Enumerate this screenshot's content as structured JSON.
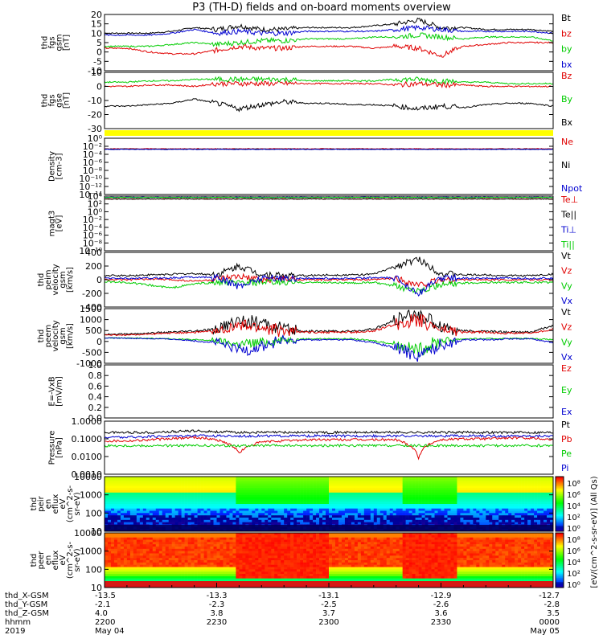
{
  "title": "P3 (TH-D) fields and on-board moments overview",
  "bands": [
    "thd_X-GSM",
    "thd_Y-GSM",
    "thd_Z-GSM",
    "hhmm",
    "2019"
  ],
  "colors": {
    "black": "#000000",
    "red": "#e00000",
    "green": "#00cc00",
    "blue": "#0000d0",
    "yellow": "#ffff00"
  },
  "chart_data": [
    {
      "type": "line",
      "id": "fgs_gsm",
      "ylabel": [
        "thd",
        "fgs",
        "gsm",
        "[nT]"
      ],
      "ylim": [
        -10,
        20
      ],
      "yticks": [
        "20",
        "15",
        "10",
        "5",
        "0",
        "-5",
        "-10"
      ],
      "series": [
        {
          "name": "Bt",
          "color": "#000000",
          "values": [
            10,
            10,
            10,
            11,
            13,
            12,
            14,
            12,
            12,
            13,
            13,
            13,
            14,
            15,
            17,
            13,
            13,
            12,
            12,
            12,
            11
          ]
        },
        {
          "name": "bz",
          "color": "#e00000",
          "values": [
            2,
            2,
            0,
            -1,
            -1,
            1,
            3,
            2,
            2,
            3,
            3,
            3,
            2,
            3,
            2,
            -2,
            3,
            4,
            5,
            5,
            5
          ]
        },
        {
          "name": "by",
          "color": "#00cc00",
          "values": [
            3,
            3,
            3,
            4,
            5,
            4,
            5,
            6,
            6,
            7,
            7,
            7,
            8,
            8,
            9,
            8,
            7,
            8,
            8,
            8,
            6
          ]
        },
        {
          "name": "bx",
          "color": "#0000d0",
          "values": [
            9,
            9,
            9,
            10,
            12,
            10,
            11,
            10,
            10,
            11,
            11,
            11,
            11,
            12,
            13,
            12,
            11,
            11,
            11,
            11,
            10
          ]
        }
      ]
    },
    {
      "type": "line",
      "id": "fgs_gse",
      "ylabel": [
        "thd",
        "fgs",
        "gse",
        "[nT]"
      ],
      "ylim": [
        -30,
        10
      ],
      "yticks": [
        "10",
        "0",
        "-10",
        "-20",
        "-30"
      ],
      "series": [
        {
          "name": "Bz",
          "color": "#e00000",
          "values": [
            0,
            0,
            1,
            1,
            0,
            2,
            2,
            2,
            2,
            2,
            2,
            2,
            2,
            1,
            2,
            1,
            1,
            0,
            0,
            0,
            0
          ]
        },
        {
          "name": "By",
          "color": "#00cc00",
          "values": [
            3,
            3,
            4,
            4,
            5,
            5,
            5,
            5,
            5,
            4,
            4,
            4,
            4,
            5,
            5,
            4,
            3,
            3,
            2,
            2,
            2
          ]
        },
        {
          "name": "Bx",
          "color": "#000000",
          "values": [
            -14,
            -14,
            -13,
            -12,
            -9,
            -12,
            -16,
            -13,
            -11,
            -12,
            -12,
            -13,
            -13,
            -14,
            -16,
            -14,
            -15,
            -13,
            -12,
            -12,
            -14
          ]
        }
      ]
    },
    {
      "type": "line",
      "id": "density",
      "log": true,
      "ylabel": [
        "Density",
        "[cm-3]"
      ],
      "ylim": [
        -14,
        2
      ],
      "yticks": [
        "10⁰",
        "10⁻²",
        "10⁻⁴",
        "10⁻⁶",
        "10⁻⁸",
        "10⁻¹⁰",
        "10⁻¹²",
        "10⁻¹⁴"
      ],
      "series": [
        {
          "name": "Ne",
          "color": "#e00000",
          "values": [
            0.1,
            0.1,
            0.1,
            0.1,
            0.1,
            0.1,
            0.1,
            0.1,
            0.1,
            0.1,
            0.1,
            0.1,
            0.1,
            0.1,
            0.1,
            0.1,
            0.1,
            0.1,
            0.1,
            0.1,
            0.1
          ]
        },
        {
          "name": "Ni",
          "color": "#000000",
          "values": [
            0.08,
            0.08,
            0.08,
            0.08,
            0.08,
            0.08,
            0.08,
            0.08,
            0.08,
            0.08,
            0.08,
            0.08,
            0.08,
            0.08,
            0.08,
            0.08,
            0.08,
            0.08,
            0.08,
            0.08,
            0.08
          ]
        },
        {
          "name": "Npot",
          "color": "#0000d0",
          "values": [
            0.07,
            0.07,
            0.07,
            0.07,
            0.07,
            0.07,
            0.07,
            0.07,
            0.07,
            0.07,
            0.07,
            0.07,
            0.07,
            0.07,
            0.07,
            0.07,
            0.07,
            0.07,
            0.07,
            0.07,
            0.07
          ]
        }
      ]
    },
    {
      "type": "line",
      "id": "magt3",
      "log": true,
      "ylabel": [
        "magt3",
        "[eV]"
      ],
      "ylim": [
        -10,
        4
      ],
      "yticks": [
        "10⁴",
        "10²",
        "10⁰",
        "10⁻²",
        "10⁻⁴",
        "10⁻⁶",
        "10⁻⁸",
        "10⁻¹⁰"
      ],
      "series": [
        {
          "name": "Te⊥",
          "color": "#e00000",
          "values": [
            2000,
            2000,
            2000,
            2000,
            2000,
            2000,
            2000,
            2000,
            2000,
            2000,
            2000,
            2000,
            2000,
            2000,
            2000,
            2000,
            2000,
            2000,
            2000,
            2000,
            2000
          ]
        },
        {
          "name": "Te||",
          "color": "#000000",
          "values": [
            1800,
            1800,
            1800,
            1800,
            1800,
            1800,
            1800,
            1800,
            1800,
            1800,
            1800,
            1800,
            1800,
            1800,
            1800,
            1800,
            1800,
            1800,
            1800,
            1800,
            1800
          ]
        },
        {
          "name": "Ti⊥",
          "color": "#0000d0",
          "values": [
            5000,
            5000,
            5000,
            5000,
            5000,
            5000,
            5000,
            5000,
            5000,
            5000,
            5000,
            5000,
            5000,
            5000,
            5000,
            5000,
            5000,
            5000,
            5000,
            5000,
            5000
          ]
        },
        {
          "name": "Ti||",
          "color": "#00cc00",
          "values": [
            4500,
            4500,
            4500,
            4500,
            4500,
            4500,
            4500,
            4500,
            4500,
            4500,
            4500,
            4500,
            4500,
            4500,
            4500,
            4500,
            4500,
            4500,
            4500,
            4500,
            4500
          ]
        }
      ]
    },
    {
      "type": "line",
      "id": "peim",
      "ylabel": [
        "thd",
        "peim",
        "velocity",
        "gsm",
        "[km/s]"
      ],
      "ylim": [
        -400,
        400
      ],
      "yticks": [
        "400",
        "200",
        "0",
        "-200",
        "-400"
      ],
      "series": [
        {
          "name": "Vt",
          "color": "#000000",
          "values": [
            60,
            60,
            70,
            80,
            90,
            70,
            200,
            80,
            60,
            60,
            70,
            70,
            80,
            200,
            300,
            90,
            70,
            70,
            60,
            60,
            80
          ]
        },
        {
          "name": "Vz",
          "color": "#e00000",
          "values": [
            0,
            0,
            10,
            0,
            -20,
            0,
            40,
            0,
            10,
            0,
            0,
            0,
            0,
            20,
            -80,
            0,
            0,
            0,
            0,
            0,
            0
          ]
        },
        {
          "name": "Vy",
          "color": "#00cc00",
          "values": [
            -30,
            -40,
            -80,
            -120,
            -60,
            -40,
            -50,
            -40,
            -40,
            -40,
            -40,
            -50,
            -40,
            -100,
            -150,
            -80,
            -50,
            -40,
            -40,
            -40,
            -40
          ]
        },
        {
          "name": "Vx",
          "color": "#0000d0",
          "values": [
            20,
            20,
            20,
            30,
            40,
            30,
            -100,
            30,
            20,
            20,
            20,
            20,
            30,
            20,
            -200,
            30,
            20,
            20,
            20,
            20,
            20
          ]
        }
      ]
    },
    {
      "type": "line",
      "id": "peem",
      "ylabel": [
        "thd",
        "peem",
        "velocity",
        "gsm",
        "[km/s]"
      ],
      "ylim": [
        -1400,
        1500
      ],
      "yticks": [
        "1500",
        "1000",
        "500",
        "0",
        "-500",
        "-1000"
      ],
      "series": [
        {
          "name": "Vt",
          "color": "#000000",
          "values": [
            150,
            150,
            200,
            250,
            300,
            400,
            900,
            700,
            400,
            300,
            300,
            300,
            400,
            900,
            1200,
            600,
            300,
            300,
            250,
            250,
            600
          ]
        },
        {
          "name": "Vz",
          "color": "#e00000",
          "values": [
            100,
            100,
            150,
            200,
            250,
            300,
            600,
            500,
            300,
            250,
            250,
            250,
            300,
            700,
            900,
            400,
            250,
            250,
            200,
            200,
            400
          ]
        },
        {
          "name": "Vy",
          "color": "#00cc00",
          "values": [
            -50,
            -60,
            -80,
            -100,
            -150,
            -200,
            -400,
            -300,
            -150,
            -100,
            -100,
            -100,
            -200,
            -400,
            -700,
            -200,
            -100,
            -100,
            -80,
            -80,
            -150
          ]
        },
        {
          "name": "Vx",
          "color": "#0000d0",
          "values": [
            -60,
            -70,
            -90,
            -120,
            -200,
            -300,
            -700,
            -500,
            -200,
            -150,
            -150,
            -150,
            -300,
            -600,
            -1000,
            -400,
            -150,
            -150,
            -100,
            -100,
            -300
          ]
        }
      ]
    },
    {
      "type": "line",
      "id": "efield",
      "ylabel": [
        "E=-VxB",
        "[mV/m]"
      ],
      "ylim": [
        0,
        1
      ],
      "yticks": [
        "1.0",
        "0.8",
        "0.6",
        "0.4",
        "0.2",
        "0.0"
      ],
      "series": [
        {
          "name": "Ez",
          "color": "#e00000",
          "values": []
        },
        {
          "name": "Ey",
          "color": "#00cc00",
          "values": []
        },
        {
          "name": "Ex",
          "color": "#0000d0",
          "values": []
        }
      ]
    },
    {
      "type": "line",
      "id": "pressure",
      "log": true,
      "ylabel": [
        "Pressure",
        "[nPa]"
      ],
      "ylim": [
        -3.3,
        0
      ],
      "yticks": [
        "1.0000",
        "0.1000",
        "0.0100",
        "0.0010"
      ],
      "series": [
        {
          "name": "Pt",
          "color": "#000000",
          "values": [
            0.2,
            0.2,
            0.2,
            0.22,
            0.25,
            0.22,
            0.2,
            0.2,
            0.2,
            0.2,
            0.2,
            0.2,
            0.2,
            0.2,
            0.2,
            0.2,
            0.2,
            0.2,
            0.2,
            0.2,
            0.2
          ]
        },
        {
          "name": "Pb",
          "color": "#e00000",
          "values": [
            0.06,
            0.06,
            0.07,
            0.08,
            0.1,
            0.07,
            0.01,
            0.05,
            0.06,
            0.07,
            0.07,
            0.07,
            0.07,
            0.07,
            0.005,
            0.07,
            0.08,
            0.08,
            0.09,
            0.09,
            0.07
          ]
        },
        {
          "name": "Pe",
          "color": "#00cc00",
          "values": [
            0.03,
            0.03,
            0.03,
            0.03,
            0.03,
            0.03,
            0.03,
            0.03,
            0.03,
            0.03,
            0.03,
            0.03,
            0.03,
            0.03,
            0.03,
            0.03,
            0.03,
            0.03,
            0.03,
            0.03,
            0.03
          ]
        },
        {
          "name": "Pi",
          "color": "#0000d0",
          "values": [
            0.1,
            0.1,
            0.11,
            0.12,
            0.13,
            0.12,
            0.12,
            0.12,
            0.12,
            0.12,
            0.12,
            0.12,
            0.12,
            0.12,
            0.12,
            0.12,
            0.12,
            0.12,
            0.12,
            0.12,
            0.12
          ]
        }
      ]
    },
    {
      "type": "heatmap",
      "id": "peir_en",
      "ylabel": [
        "thd",
        "peir",
        "en",
        "eflux",
        "eV",
        "(cm^2-s-",
        "sr-eV)"
      ],
      "yticks": [
        "10000",
        "1000",
        "100",
        "10"
      ]
    },
    {
      "type": "heatmap",
      "id": "peer_en",
      "ylabel": [
        "thd",
        "peer",
        "en",
        "eflux",
        "eV",
        "(cm^2-s-",
        "sr-eV)"
      ],
      "yticks": [
        "10000",
        "1000",
        "100",
        "10"
      ]
    }
  ],
  "colorbar": {
    "label": "[eV/(cm^2-s-sr-eV)]  (All Qs)",
    "ticks_top": [
      "10⁸",
      "10⁶",
      "10⁴",
      "10²",
      "10⁰"
    ],
    "ticks_bottom": [
      "10⁸",
      "10⁶",
      "10⁴",
      "10²",
      "10⁰"
    ]
  },
  "xaxis": {
    "thd_X": [
      "-13.5",
      "-13.3",
      "-13.1",
      "-12.9",
      "-12.7"
    ],
    "thd_Y": [
      "-2.1",
      "-2.3",
      "-2.5",
      "-2.6",
      "-2.8"
    ],
    "thd_Z": [
      "4.0",
      "3.8",
      "3.7",
      "3.6",
      "3.5"
    ],
    "hhmm": [
      "2200",
      "2230",
      "2300",
      "2330",
      "0000"
    ],
    "date_start": "May 04",
    "date_end": "May 05"
  }
}
